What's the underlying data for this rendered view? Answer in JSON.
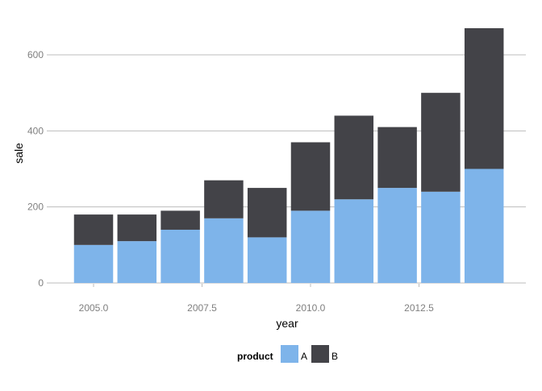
{
  "chart_data": {
    "type": "bar",
    "stacked": true,
    "x": [
      2005,
      2006,
      2007,
      2008,
      2009,
      2010,
      2011,
      2012,
      2013,
      2014
    ],
    "series": [
      {
        "name": "A",
        "color": "#7eb4ea",
        "values": [
          100,
          110,
          140,
          170,
          120,
          190,
          220,
          250,
          240,
          300
        ]
      },
      {
        "name": "B",
        "color": "#434348",
        "values": [
          80,
          70,
          50,
          100,
          130,
          180,
          220,
          160,
          260,
          370
        ]
      }
    ],
    "xlabel": "year",
    "ylabel": "sale",
    "xticks": [
      2005.0,
      2007.5,
      2010.0,
      2012.5
    ],
    "xtick_labels": [
      "2005.0",
      "2007.5",
      "2010.0",
      "2012.5"
    ],
    "yticks": [
      0,
      200,
      400,
      600
    ],
    "ytick_labels": [
      "0",
      "200",
      "400",
      "600"
    ],
    "xlim": [
      2004.4,
      2014.6
    ],
    "ylim": [
      0,
      700
    ],
    "grid": "horizontal",
    "legend": {
      "title": "product",
      "position": "bottom"
    }
  }
}
